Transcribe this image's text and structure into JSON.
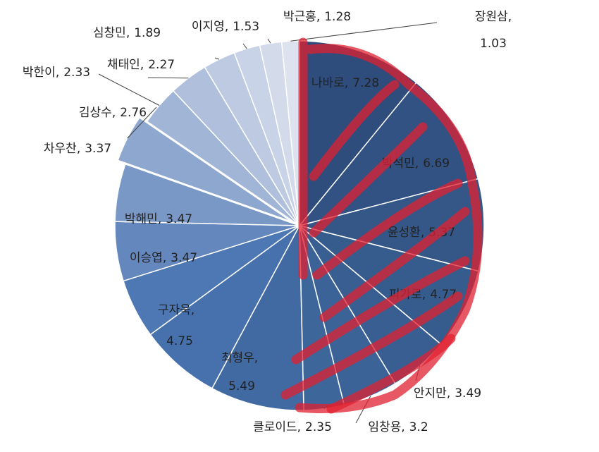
{
  "chart_data": {
    "type": "pie",
    "categories": [
      "나바로",
      "박석민",
      "윤성환",
      "피가로",
      "안지만",
      "임창용",
      "클로이드",
      "최형우",
      "구자욱",
      "이승엽",
      "박해민",
      "차우찬",
      "김상수",
      "박한이",
      "채태인",
      "심창민",
      "이지영",
      "박근홍",
      "장원삼"
    ],
    "values": [
      7.28,
      6.69,
      5.37,
      4.77,
      3.49,
      3.2,
      2.35,
      5.49,
      4.75,
      3.47,
      3.47,
      3.37,
      2.76,
      2.33,
      2.27,
      1.89,
      1.53,
      1.28,
      1.03
    ],
    "colors": [
      "#2e4c7c",
      "#315282",
      "#345788",
      "#365b8d",
      "#395f92",
      "#3b6397",
      "#3d669b",
      "#406aa1",
      "#4671ac",
      "#4d78b3",
      "#6487bd",
      "#7a98c6",
      "#8ea7ce",
      "#a1b5d6",
      "#b0c0dc",
      "#bdcae2",
      "#c9d3e7",
      "#d3dbeb",
      "#dde2ef"
    ]
  }
}
